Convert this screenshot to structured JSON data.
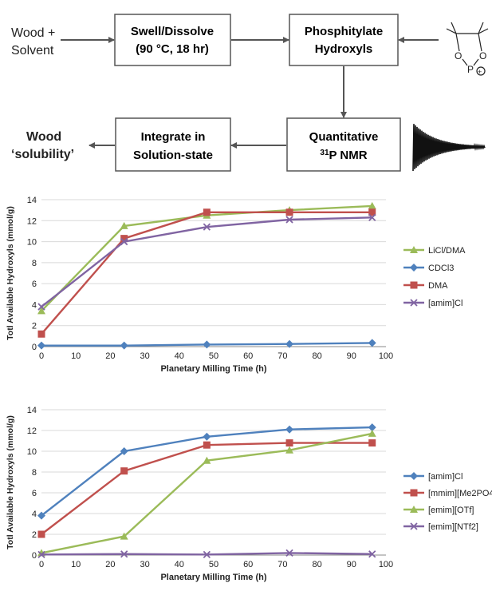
{
  "flow": {
    "input": [
      "Wood +",
      "Solvent"
    ],
    "step1": [
      "Swell/Dissolve",
      "(90 °C, 18 hr)"
    ],
    "step2": [
      "Phosphitylate",
      "Hydroxyls"
    ],
    "step3": [
      "Quantitative",
      "31P NMR"
    ],
    "step4": [
      "Integrate in",
      "Solution-state"
    ],
    "output": [
      "Wood",
      "‘solubility’"
    ],
    "reagent": {
      "label_o1": "O",
      "label_o2": "O",
      "label_p": "P",
      "charge": "+"
    }
  },
  "chart_data": [
    {
      "type": "line",
      "xlabel": "Planetary Milling Time (h)",
      "ylabel": "Totl Available Hydroxyls (mmol/g)",
      "xlim": [
        0,
        100
      ],
      "ylim": [
        0,
        14
      ],
      "xticks": [
        0,
        10,
        20,
        30,
        40,
        50,
        60,
        70,
        80,
        90,
        100
      ],
      "yticks": [
        0,
        2,
        4,
        6,
        8,
        10,
        12,
        14
      ],
      "grid": true,
      "legend_position": "right",
      "series": [
        {
          "name": "LiCl/DMA",
          "color": "#9bbb59",
          "marker": "triangle",
          "x": [
            0,
            24,
            48,
            72,
            96
          ],
          "y": [
            3.4,
            11.5,
            12.5,
            13.0,
            13.4
          ]
        },
        {
          "name": "CDCl3",
          "color": "#4f81bd",
          "marker": "diamond",
          "x": [
            0,
            24,
            48,
            72,
            96
          ],
          "y": [
            0.1,
            0.1,
            0.2,
            0.25,
            0.35
          ]
        },
        {
          "name": "DMA",
          "color": "#c0504d",
          "marker": "square",
          "x": [
            0,
            24,
            48,
            72,
            96
          ],
          "y": [
            1.2,
            10.3,
            12.8,
            12.8,
            12.8
          ]
        },
        {
          "name": "[amim]Cl",
          "color": "#8064a2",
          "marker": "x",
          "x": [
            0,
            24,
            48,
            72,
            96
          ],
          "y": [
            3.8,
            10.0,
            11.4,
            12.1,
            12.3
          ]
        }
      ]
    },
    {
      "type": "line",
      "xlabel": "Planetary Milling Time (h)",
      "ylabel": "Totl Available Hydroxyls (mmol/g)",
      "xlim": [
        0,
        100
      ],
      "ylim": [
        0,
        14
      ],
      "xticks": [
        0,
        10,
        20,
        30,
        40,
        50,
        60,
        70,
        80,
        90,
        100
      ],
      "yticks": [
        0,
        2,
        4,
        6,
        8,
        10,
        12,
        14
      ],
      "grid": true,
      "legend_position": "right",
      "series": [
        {
          "name": "[amim]Cl",
          "color": "#4f81bd",
          "marker": "diamond",
          "x": [
            0,
            24,
            48,
            72,
            96
          ],
          "y": [
            3.8,
            10.0,
            11.4,
            12.1,
            12.3
          ]
        },
        {
          "name": "[mmim][Me2PO4",
          "color": "#c0504d",
          "marker": "square",
          "x": [
            0,
            24,
            48,
            72,
            96
          ],
          "y": [
            2.0,
            8.1,
            10.6,
            10.8,
            10.8
          ]
        },
        {
          "name": "[emim][OTf]",
          "color": "#9bbb59",
          "marker": "triangle",
          "x": [
            0,
            24,
            48,
            72,
            96
          ],
          "y": [
            0.2,
            1.8,
            9.1,
            10.1,
            11.7
          ]
        },
        {
          "name": "[emim][NTf2]",
          "color": "#8064a2",
          "marker": "x",
          "x": [
            0,
            24,
            48,
            72,
            96
          ],
          "y": [
            0.05,
            0.1,
            0.05,
            0.2,
            0.1
          ]
        }
      ]
    }
  ]
}
